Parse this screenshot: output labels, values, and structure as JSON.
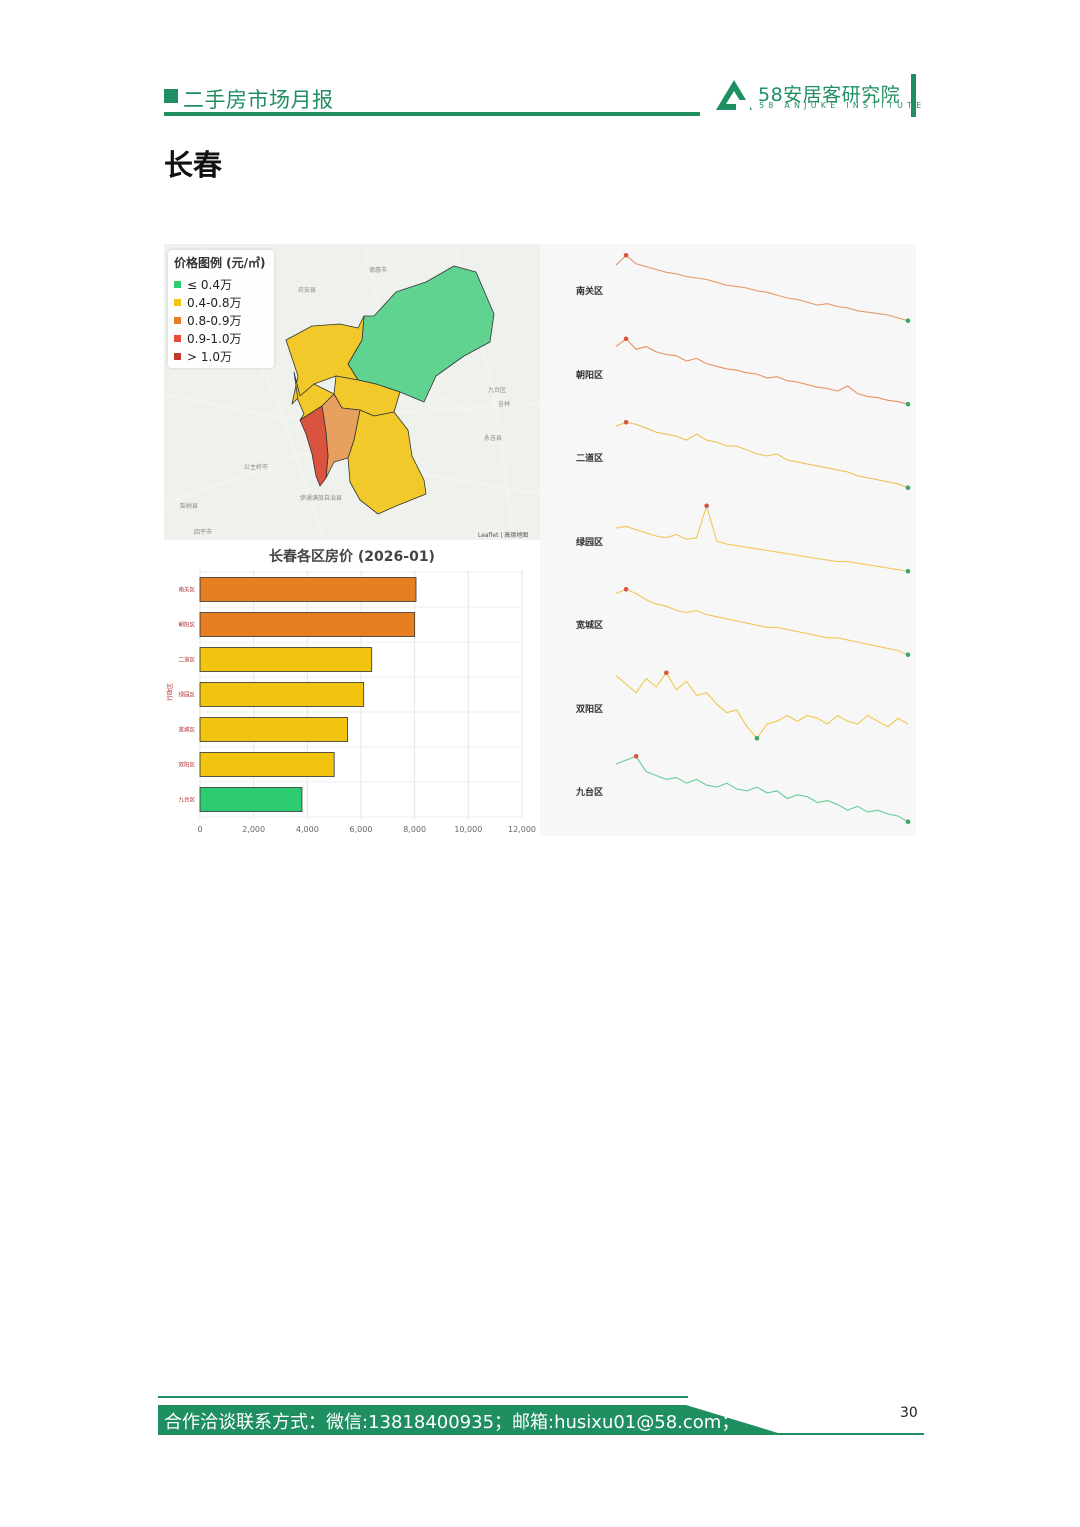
{
  "header": {
    "report_title": "二手房市场月报",
    "brand_name": "58安居客研究院",
    "brand_sub": "58 ANJUKE INSTITUTE"
  },
  "page": {
    "heading": "长春",
    "number": "30"
  },
  "map": {
    "legend_title": "价格图例 (元/㎡)",
    "legend": [
      {
        "label": "≤ 0.4万",
        "color": "#2ecc71"
      },
      {
        "label": "0.4-0.8万",
        "color": "#f1c40f"
      },
      {
        "label": "0.8-0.9万",
        "color": "#e67e22"
      },
      {
        "label": "0.9-1.0万",
        "color": "#e74c3c"
      },
      {
        "label": "> 1.0万",
        "color": "#c0392b"
      }
    ],
    "attribution": "Leaflet | 高德地图",
    "place_labels": [
      "德惠市",
      "农安县",
      "九台区",
      "吉林",
      "永吉县",
      "公主岭市",
      "伊通满族自治县",
      "梨树县",
      "四平市"
    ],
    "district_colors": {
      "九台区": "#5fd38f",
      "宽城区": "#f1c92a",
      "绿园区": "#f1c92a",
      "双阳区": "#f1c92a",
      "二道区": "#f1c92a",
      "朝阳区": "#e8a05e",
      "南关区": "#d9533f"
    }
  },
  "chart_data": [
    {
      "type": "bar",
      "title": "长春各区房价 (2026-01)",
      "orientation": "horizontal",
      "categories": [
        "南关区",
        "朝阳区",
        "二道区",
        "绿园区",
        "宽城区",
        "双阳区",
        "九台区"
      ],
      "values": [
        8050,
        8000,
        6400,
        6100,
        5500,
        5000,
        3800
      ],
      "colors": [
        "#e67e22",
        "#e67e22",
        "#f1c40f",
        "#f1c40f",
        "#f1c40f",
        "#f1c40f",
        "#2ecc71"
      ],
      "ylabel": "行政区",
      "xlim": [
        0,
        12000
      ],
      "xticks": [
        0,
        2000,
        4000,
        6000,
        8000,
        10000,
        12000
      ],
      "xtick_labels": [
        "0",
        "2,000",
        "4,000",
        "6,000",
        "8,000",
        "10,000",
        "12,000"
      ],
      "grid": true
    },
    {
      "type": "line",
      "subtype": "sparklines",
      "series": [
        {
          "name": "南关区",
          "color": "#e59a6a",
          "values": [
            9.8,
            10.5,
            9.9,
            9.7,
            9.5,
            9.3,
            9.2,
            9.0,
            8.9,
            8.8,
            8.6,
            8.4,
            8.3,
            8.2,
            8.0,
            7.9,
            7.7,
            7.5,
            7.4,
            7.2,
            7.0,
            7.1,
            6.9,
            6.8,
            6.6,
            6.5,
            6.4,
            6.3,
            6.1,
            5.9
          ]
        },
        {
          "name": "朝阳区",
          "color": "#e8915f",
          "values": [
            9.6,
            10.2,
            9.4,
            9.6,
            9.2,
            9.0,
            8.9,
            8.5,
            8.7,
            8.3,
            8.1,
            7.9,
            7.8,
            7.6,
            7.5,
            7.2,
            7.3,
            7.0,
            6.9,
            6.7,
            6.5,
            6.4,
            6.2,
            6.6,
            6.0,
            5.8,
            5.7,
            5.5,
            5.4,
            5.2
          ]
        },
        {
          "name": "二道区",
          "color": "#eec25a",
          "values": [
            8.6,
            8.8,
            8.7,
            8.5,
            8.3,
            8.2,
            8.1,
            7.9,
            8.2,
            7.9,
            7.8,
            7.6,
            7.6,
            7.4,
            7.2,
            7.1,
            7.2,
            6.9,
            6.8,
            6.7,
            6.6,
            6.5,
            6.4,
            6.3,
            6.1,
            6.0,
            5.9,
            5.8,
            5.7,
            5.5
          ]
        },
        {
          "name": "绿园区",
          "color": "#f0c759",
          "values": [
            7.5,
            7.6,
            7.4,
            7.2,
            7.0,
            6.9,
            7.1,
            6.8,
            6.9,
            8.9,
            6.7,
            6.5,
            6.4,
            6.3,
            6.2,
            6.1,
            6.0,
            5.9,
            5.8,
            5.7,
            5.6,
            5.5,
            5.4,
            5.4,
            5.3,
            5.2,
            5.1,
            5.0,
            4.9,
            4.8
          ]
        },
        {
          "name": "宽城区",
          "color": "#f0c65a",
          "values": [
            6.4,
            6.6,
            6.4,
            6.1,
            5.9,
            5.8,
            5.6,
            5.5,
            5.6,
            5.4,
            5.3,
            5.2,
            5.1,
            5.0,
            4.9,
            4.8,
            4.8,
            4.7,
            4.6,
            4.5,
            4.4,
            4.3,
            4.3,
            4.2,
            4.1,
            4.0,
            3.9,
            3.8,
            3.7,
            3.5
          ]
        },
        {
          "name": "双阳区",
          "color": "#f0c84a",
          "values": [
            5.6,
            5.3,
            5.0,
            5.5,
            5.2,
            5.7,
            5.1,
            5.4,
            4.9,
            5.0,
            4.6,
            4.3,
            4.4,
            3.8,
            3.4,
            3.9,
            4.0,
            4.2,
            4.0,
            4.2,
            4.1,
            3.9,
            4.2,
            4.0,
            3.9,
            4.2,
            4.0,
            3.8,
            4.1,
            3.9
          ]
        },
        {
          "name": "九台区",
          "color": "#66cc99",
          "values": [
            3.5,
            3.6,
            3.7,
            3.3,
            3.2,
            3.1,
            3.15,
            3.0,
            3.1,
            2.95,
            2.9,
            3.0,
            2.85,
            2.8,
            2.9,
            2.75,
            2.8,
            2.6,
            2.7,
            2.65,
            2.5,
            2.55,
            2.45,
            2.3,
            2.4,
            2.25,
            2.3,
            2.2,
            2.15,
            2.0
          ]
        }
      ]
    }
  ],
  "footer": {
    "contact": "合作洽谈联系方式：微信:13818400935；邮箱:husixu01@58.com；"
  }
}
